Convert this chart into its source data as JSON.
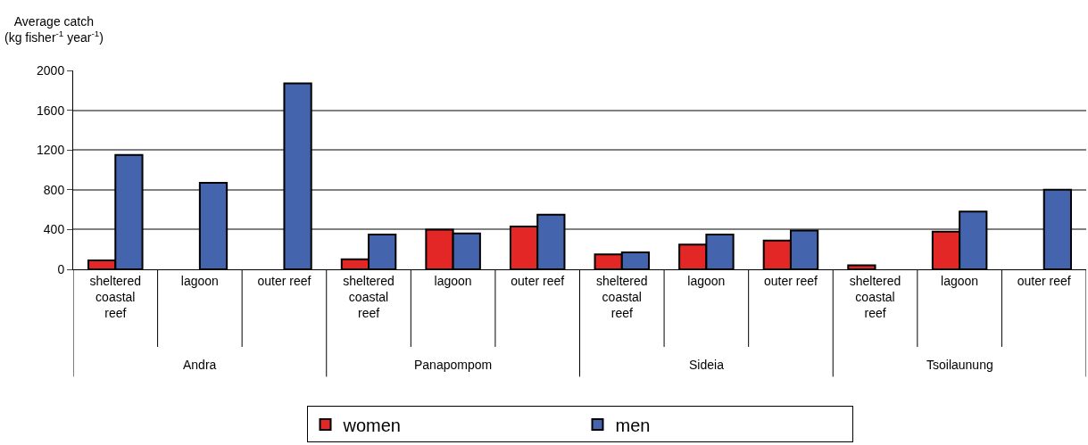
{
  "chart_data": {
    "type": "bar",
    "ylabel": "Average catch (kg fisher$^{-1}$ year$^{-1}$)",
    "categories": [
      "sheltered coastal reef",
      "lagoon",
      "outer reef",
      "sheltered coastal reef",
      "lagoon",
      "outer reef",
      "sheltered coastal reef",
      "lagoon",
      "outer reef",
      "sheltered coastal reef",
      "lagoon",
      "outer reef"
    ],
    "annotations": [
      "Andra",
      "Panapompom",
      "Sideia",
      "Tsoilaunung"
    ],
    "series": [
      {
        "name": "women",
        "color": "#e32626",
        "values": [
          90,
          null,
          null,
          100,
          400,
          430,
          150,
          250,
          290,
          40,
          380,
          null
        ]
      },
      {
        "name": "men",
        "color": "#4464ad",
        "values": [
          1150,
          870,
          1870,
          350,
          360,
          550,
          170,
          350,
          390,
          null,
          580,
          800
        ]
      }
    ],
    "ylim": [
      0,
      2000
    ],
    "yticks": [
      0,
      400,
      800,
      1200,
      1600,
      2000
    ],
    "grid": "y",
    "legend": "bottom"
  }
}
